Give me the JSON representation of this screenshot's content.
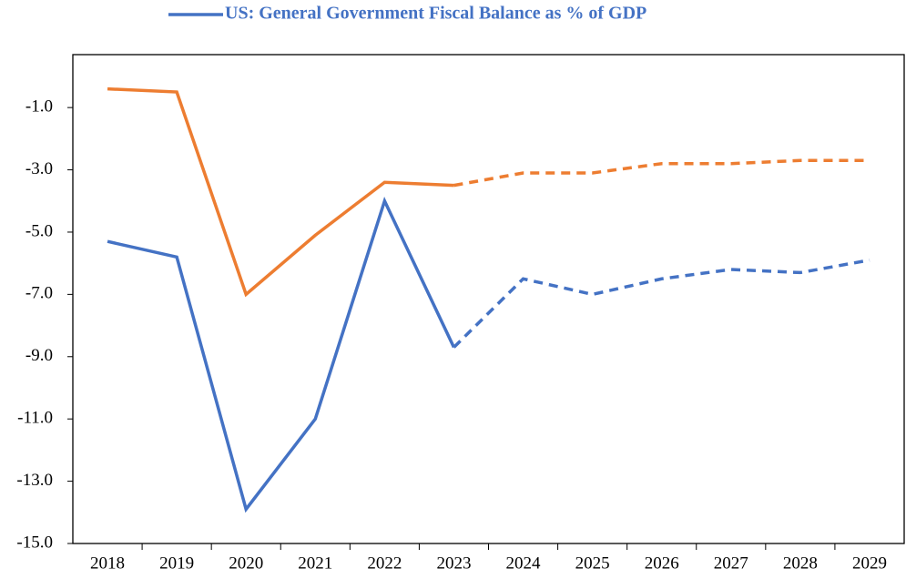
{
  "chart_data": {
    "type": "line",
    "categories": [
      "2018",
      "2019",
      "2020",
      "2021",
      "2022",
      "2023",
      "2024",
      "2025",
      "2026",
      "2027",
      "2028",
      "2029"
    ],
    "dashed_from": "2023",
    "series": [
      {
        "name": "US: General Government Fiscal Balance as % of GDP",
        "color": "#4472c4",
        "values": [
          -5.3,
          -5.8,
          -13.9,
          -11.0,
          -4.0,
          -8.7,
          -6.5,
          -7.0,
          -6.5,
          -6.2,
          -6.3,
          -5.9
        ]
      },
      {
        "color": "#ed7d31",
        "values": [
          -0.4,
          -0.5,
          -7.0,
          -5.1,
          -3.4,
          -3.5,
          -3.1,
          -3.1,
          -2.8,
          -2.8,
          -2.7,
          -2.7
        ]
      }
    ],
    "ylim": [
      -15,
      0.7
    ],
    "yticks": [
      {
        "value": -15,
        "label": "-15.0"
      },
      {
        "value": -13,
        "label": "-13.0"
      },
      {
        "value": -11,
        "label": "-11.0"
      },
      {
        "value": -9,
        "label": "-9.0"
      },
      {
        "value": -7,
        "label": "-7.0"
      },
      {
        "value": -5,
        "label": "-5.0"
      },
      {
        "value": -3,
        "label": "-3.0"
      },
      {
        "value": -1,
        "label": "-1.0"
      }
    ],
    "grid": false,
    "legend": "top"
  }
}
